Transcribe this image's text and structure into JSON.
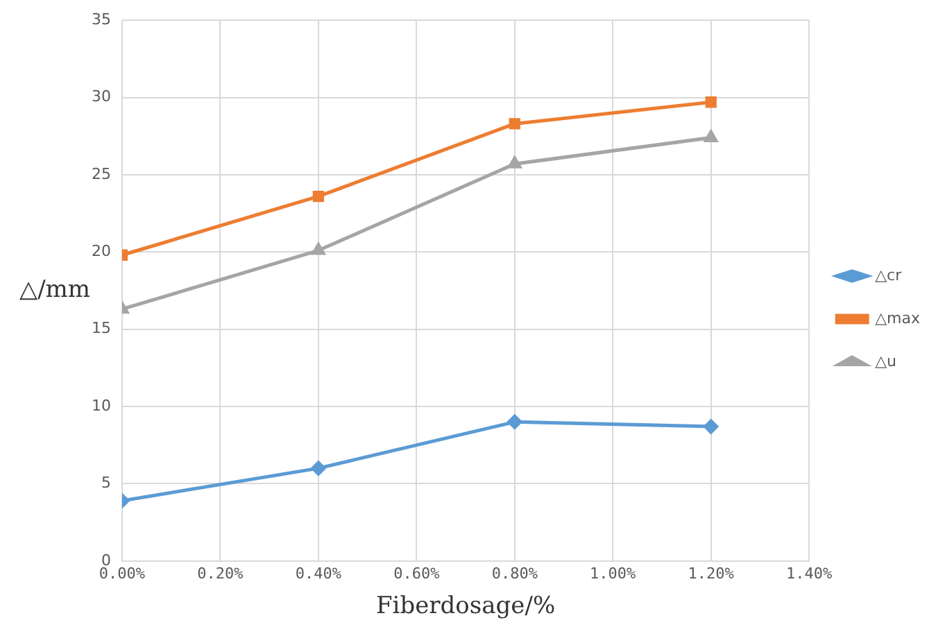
{
  "chart_data": {
    "type": "line",
    "xlabel": "Fiberdosage/%",
    "ylabel": "△/mm",
    "x": [
      0,
      0.4,
      0.8,
      1.2
    ],
    "series": [
      {
        "name": "△cr",
        "color": "#5b9bd5",
        "marker": "diamond",
        "values": [
          3.9,
          6.0,
          9.0,
          8.7
        ]
      },
      {
        "name": "△max",
        "color": "#ed7d31",
        "marker": "square",
        "values": [
          19.8,
          23.6,
          28.3,
          29.7
        ]
      },
      {
        "name": "△u",
        "color": "#a5a5a5",
        "marker": "triangle",
        "values": [
          16.3,
          20.1,
          25.7,
          27.4
        ]
      }
    ],
    "xlim": [
      0,
      1.4
    ],
    "xticks": [
      {
        "value": 0,
        "label": "0.00%"
      },
      {
        "value": 0.2,
        "label": "0.20%"
      },
      {
        "value": 0.4,
        "label": "0.40%"
      },
      {
        "value": 0.6,
        "label": "0.60%"
      },
      {
        "value": 0.8,
        "label": "0.80%"
      },
      {
        "value": 1.0,
        "label": "1.00%"
      },
      {
        "value": 1.2,
        "label": "1.20%"
      },
      {
        "value": 1.4,
        "label": "1.40%"
      }
    ],
    "ylim": [
      0,
      35
    ],
    "yticks": [
      0,
      5,
      10,
      15,
      20,
      25,
      30,
      35
    ],
    "grid": true,
    "legend": "right",
    "line_style": "solid"
  }
}
